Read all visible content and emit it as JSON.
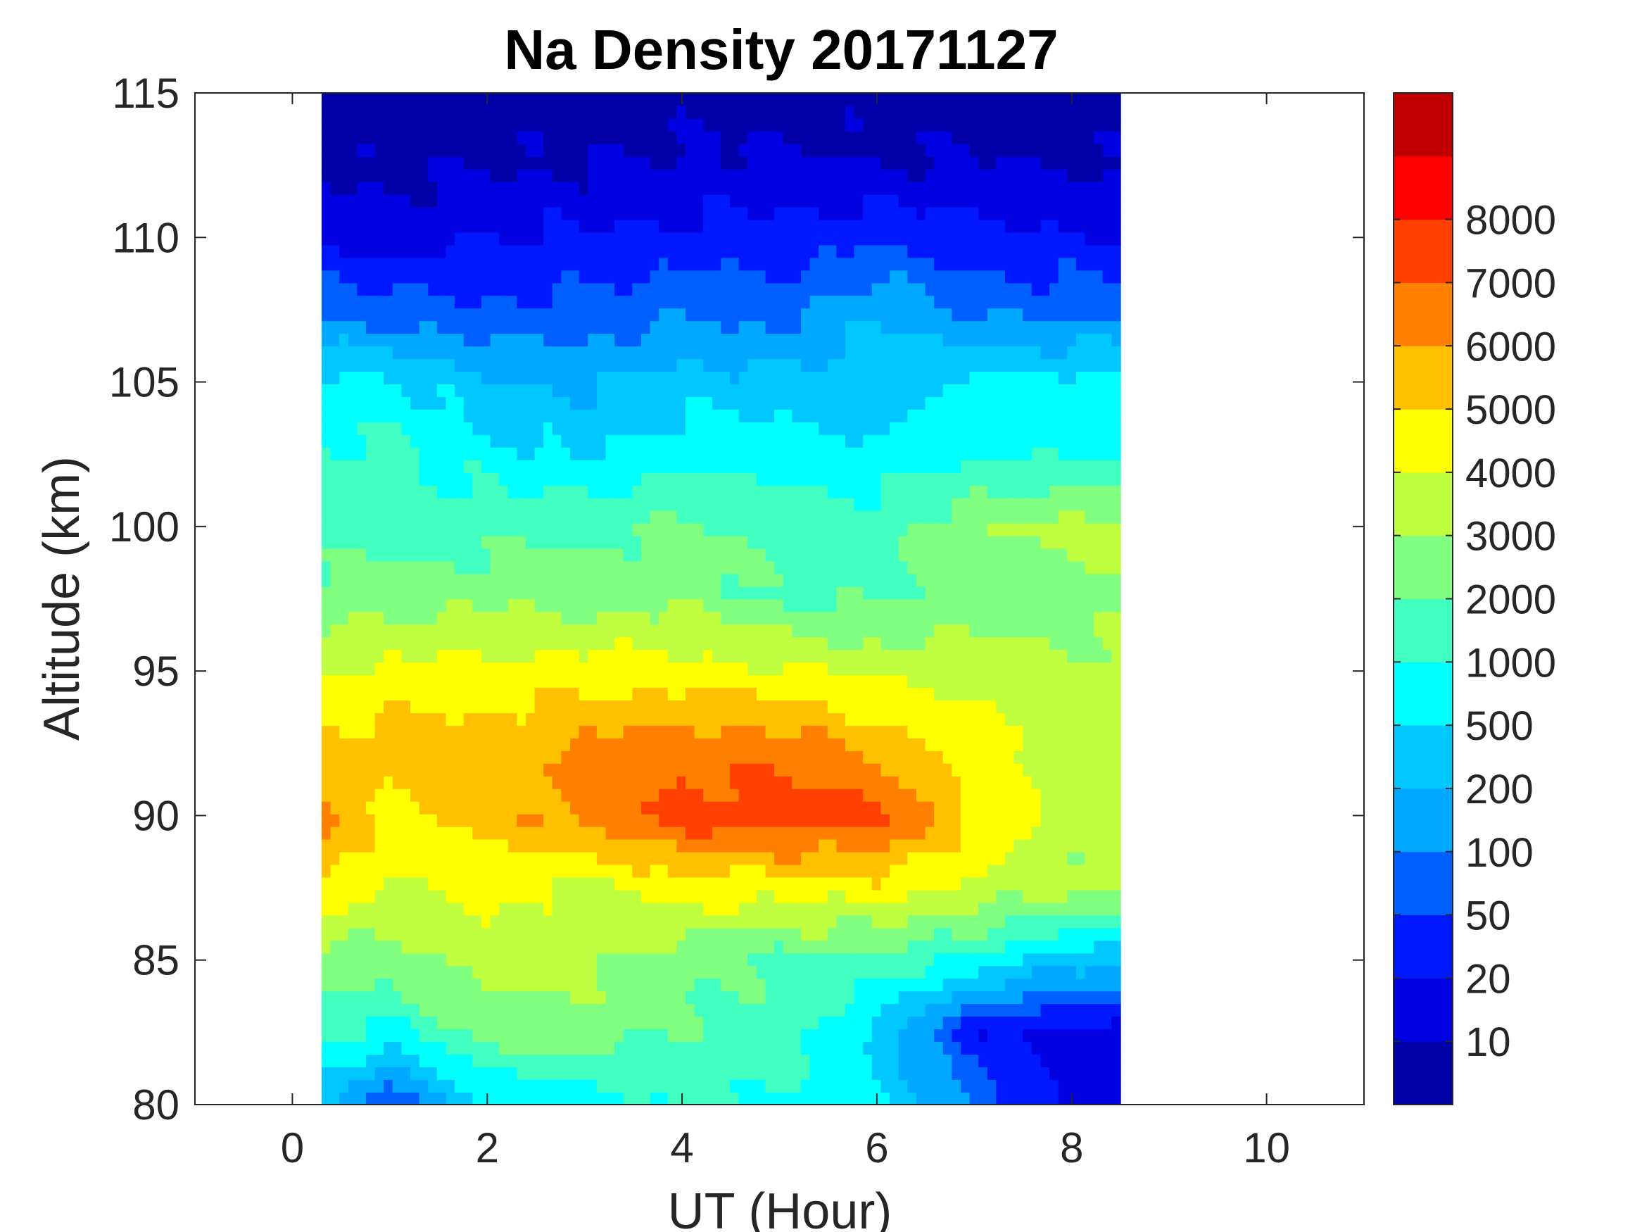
{
  "chart_data": {
    "type": "heatmap",
    "subtype": "filled-contour",
    "title": "Na Density 20171127",
    "xlabel": "UT (Hour)",
    "ylabel": "Altitude (km)",
    "xlim": [
      -1,
      11
    ],
    "ylim": [
      80,
      115
    ],
    "xticks": [
      0,
      2,
      4,
      6,
      8,
      10
    ],
    "yticks": [
      80,
      85,
      90,
      95,
      100,
      105,
      110,
      115
    ],
    "colorbar": {
      "levels": [
        0,
        10,
        20,
        50,
        100,
        200,
        500,
        1000,
        2000,
        3000,
        4000,
        5000,
        6000,
        7000,
        8000,
        9000
      ],
      "tick_labels": [
        "10",
        "20",
        "50",
        "100",
        "200",
        "500",
        "1000",
        "2000",
        "3000",
        "4000",
        "5000",
        "6000",
        "7000",
        "8000"
      ],
      "colors": [
        "#0000a8",
        "#0000e0",
        "#0018ff",
        "#0060ff",
        "#00a8ff",
        "#00c8ff",
        "#00ffff",
        "#40ffc0",
        "#80ff80",
        "#c0ff40",
        "#ffff00",
        "#ffc000",
        "#ff8000",
        "#ff4000",
        "#ff0000",
        "#c00000"
      ]
    },
    "times": [
      0.3,
      1,
      2,
      3,
      4,
      5,
      6,
      7,
      8,
      8.5
    ],
    "altitudes": [
      80,
      82.5,
      85,
      87.5,
      90,
      92.5,
      95,
      97.5,
      100,
      102.5,
      105,
      107.5,
      110,
      112.5,
      115
    ],
    "values": [
      [
        300,
        50,
        500,
        800,
        1000,
        1000,
        600,
        100,
        15,
        10
      ],
      [
        1500,
        800,
        2500,
        2500,
        1800,
        1800,
        400,
        30,
        15,
        15
      ],
      [
        2500,
        2600,
        3500,
        3200,
        2500,
        1700,
        1700,
        900,
        300,
        300
      ],
      [
        5000,
        3800,
        4500,
        3500,
        4500,
        4500,
        4500,
        3800,
        3200,
        3200
      ],
      [
        6500,
        4500,
        5500,
        6500,
        7500,
        7500,
        7500,
        5000,
        3500,
        3500
      ],
      [
        5200,
        5500,
        5500,
        6200,
        6500,
        6500,
        5500,
        4500,
        3500,
        3500
      ],
      [
        3800,
        4200,
        4300,
        4500,
        4500,
        4200,
        3800,
        3500,
        3300,
        3300
      ],
      [
        2500,
        2500,
        2800,
        2600,
        2800,
        1800,
        1800,
        2500,
        2600,
        2600
      ],
      [
        1500,
        1500,
        1600,
        1800,
        2200,
        1700,
        1600,
        2800,
        3400,
        3400
      ],
      [
        1200,
        1300,
        700,
        500,
        800,
        800,
        600,
        900,
        900,
        900
      ],
      [
        700,
        600,
        250,
        180,
        350,
        300,
        300,
        600,
        700,
        700
      ],
      [
        80,
        70,
        60,
        70,
        90,
        80,
        200,
        90,
        80,
        80
      ],
      [
        18,
        15,
        20,
        22,
        30,
        30,
        40,
        30,
        25,
        25
      ],
      [
        8,
        8,
        9,
        10,
        12,
        12,
        11,
        10,
        9,
        9
      ],
      [
        4,
        4,
        4,
        5,
        5,
        5,
        5,
        5,
        5,
        5
      ]
    ]
  }
}
